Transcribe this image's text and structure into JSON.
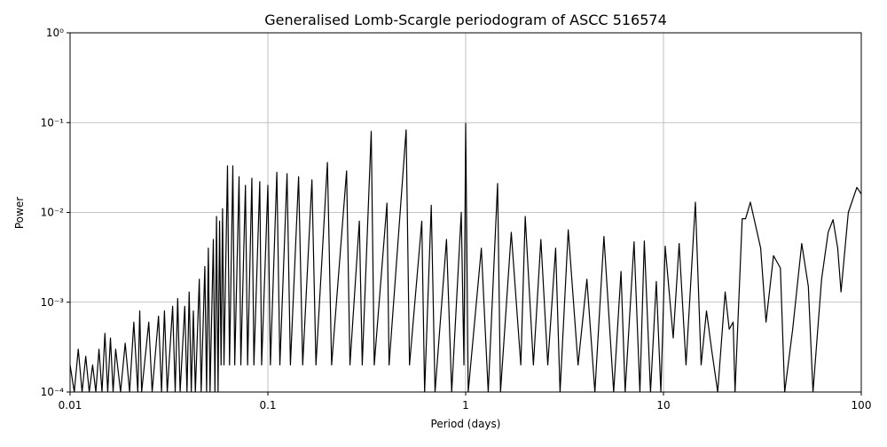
{
  "chart_data": {
    "type": "line",
    "title": "Generalised Lomb-Scargle periodogram of ASCC 516574",
    "xlabel": "Period (days)",
    "ylabel": "Power",
    "xscale": "log",
    "yscale": "log",
    "grid": true,
    "xlim": [
      0.01,
      100
    ],
    "ylim": [
      0.0001,
      1
    ],
    "xticks": [
      0.01,
      0.1,
      1,
      10,
      100
    ],
    "yticks": [
      {
        "value": 0.0001,
        "label": "10⁻⁴"
      },
      {
        "value": 0.001,
        "label": "10⁻³"
      },
      {
        "value": 0.01,
        "label": "10⁻²"
      },
      {
        "value": 0.1,
        "label": "10⁻¹"
      },
      {
        "value": 1,
        "label": "10⁰"
      }
    ],
    "series": [
      {
        "color": "#000000",
        "x": [
          0.01,
          0.0105,
          0.011,
          0.0115,
          0.012,
          0.0125,
          0.013,
          0.0135,
          0.014,
          0.0145,
          0.015,
          0.0155,
          0.016,
          0.0165,
          0.017,
          0.018,
          0.019,
          0.02,
          0.021,
          0.022,
          0.0225,
          0.023,
          0.025,
          0.026,
          0.028,
          0.029,
          0.03,
          0.031,
          0.033,
          0.034,
          0.035,
          0.036,
          0.038,
          0.039,
          0.04,
          0.041,
          0.042,
          0.043,
          0.045,
          0.046,
          0.048,
          0.049,
          0.05,
          0.051,
          0.053,
          0.054,
          0.055,
          0.056,
          0.057,
          0.058,
          0.059,
          0.06,
          0.0625,
          0.064,
          0.0665,
          0.068,
          0.0715,
          0.073,
          0.077,
          0.079,
          0.083,
          0.085,
          0.091,
          0.093,
          0.1,
          0.103,
          0.111,
          0.115,
          0.125,
          0.13,
          0.143,
          0.15,
          0.167,
          0.175,
          0.2,
          0.21,
          0.25,
          0.26,
          0.29,
          0.3,
          0.333,
          0.345,
          0.4,
          0.41,
          0.5,
          0.52,
          0.6,
          0.62,
          0.67,
          0.7,
          0.8,
          0.85,
          0.95,
          0.98,
          1.0,
          1.03,
          1.2,
          1.3,
          1.45,
          1.5,
          1.7,
          1.9,
          2.0,
          2.2,
          2.4,
          2.6,
          2.85,
          3.0,
          3.3,
          3.7,
          4.1,
          4.5,
          5.0,
          5.6,
          6.1,
          6.4,
          7.1,
          7.6,
          8.0,
          8.6,
          9.2,
          9.7,
          10.2,
          11.2,
          12,
          13,
          14.5,
          15.5,
          16.5,
          17.5,
          18.8,
          20.5,
          21.5,
          22.5,
          23,
          25,
          26,
          27.5,
          31,
          33,
          36,
          39,
          41,
          45,
          50,
          54,
          57,
          63,
          68,
          72,
          76,
          79,
          86,
          95,
          100
        ],
        "values": [
          0.0002,
          0.0001,
          0.0003,
          0.0001,
          0.00025,
          0.0001,
          0.0002,
          0.0001,
          0.0003,
          0.0001,
          0.00045,
          0.0001,
          0.0004,
          0.0001,
          0.0003,
          0.0001,
          0.00035,
          0.0001,
          0.0006,
          0.0001,
          0.0008,
          0.0001,
          0.0006,
          0.0001,
          0.0007,
          0.0001,
          0.0008,
          0.0001,
          0.0009,
          0.0001,
          0.0011,
          0.0001,
          0.0009,
          0.0001,
          0.0013,
          0.0001,
          0.0008,
          0.0001,
          0.0018,
          0.0001,
          0.0025,
          0.0001,
          0.004,
          0.0001,
          0.005,
          0.0001,
          0.009,
          0.0001,
          0.008,
          0.0002,
          0.011,
          0.0002,
          0.033,
          0.0002,
          0.033,
          0.0002,
          0.025,
          0.0002,
          0.02,
          0.0002,
          0.024,
          0.0002,
          0.022,
          0.0002,
          0.02,
          0.0002,
          0.028,
          0.0002,
          0.027,
          0.0002,
          0.025,
          0.0002,
          0.023,
          0.0002,
          0.036,
          0.0002,
          0.029,
          0.0002,
          0.008,
          0.0002,
          0.08,
          0.0002,
          0.0127,
          0.0002,
          0.083,
          0.0002,
          0.008,
          0.0001,
          0.012,
          0.0001,
          0.005,
          0.0001,
          0.01,
          0.0002,
          0.098,
          0.0001,
          0.004,
          0.0001,
          0.021,
          0.0001,
          0.006,
          0.0002,
          0.009,
          0.0002,
          0.005,
          0.0002,
          0.004,
          0.0001,
          0.0064,
          0.0002,
          0.0018,
          0.0001,
          0.0054,
          0.0001,
          0.0022,
          0.0001,
          0.0047,
          0.0001,
          0.0048,
          0.0001,
          0.0017,
          0.0001,
          0.0042,
          0.0004,
          0.0045,
          0.0002,
          0.013,
          0.0002,
          0.0008,
          0.0003,
          0.0001,
          0.0013,
          0.0005,
          0.0006,
          0.0001,
          0.0085,
          0.0085,
          0.013,
          0.004,
          0.0006,
          0.0033,
          0.0024,
          0.0001,
          0.0005,
          0.0045,
          0.0015,
          0.0001,
          0.0018,
          0.006,
          0.0083,
          0.004,
          0.0013,
          0.01,
          0.019,
          0.016
        ]
      }
    ]
  }
}
